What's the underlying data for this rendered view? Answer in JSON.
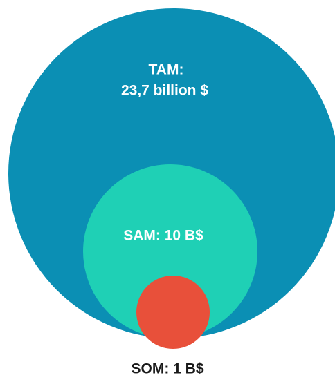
{
  "tam": {
    "label": "TAM:",
    "value": "23,7 billion $"
  },
  "sam": {
    "label": "SAM: 10 B$"
  },
  "som": {
    "label": "SOM: 1 B$"
  }
}
